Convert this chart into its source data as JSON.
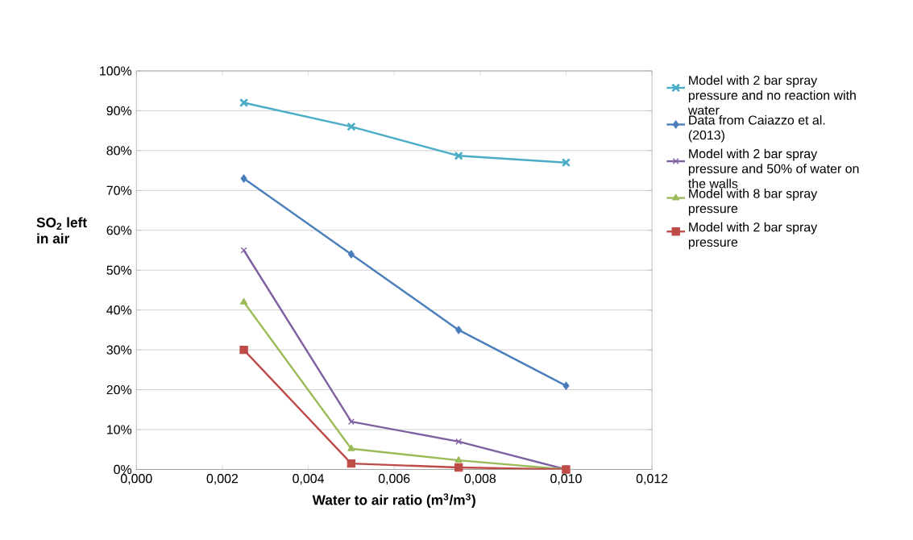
{
  "chart_data": {
    "type": "line",
    "xlabel": "Water to air ratio (m$^{3}$/m$^{3}$)",
    "ylabel": "SO$_{2}$ left in air",
    "x": [
      0.0025,
      0.005,
      0.0075,
      0.01
    ],
    "series": [
      {
        "name": "Model with 2 bar spray pressure and no reaction with water",
        "color": "#4bacc6",
        "marker": "cross",
        "values": [
          92,
          86,
          78.7,
          77
        ]
      },
      {
        "name": "Data from Caiazzo et al. (2013)",
        "color": "#4a7ebb",
        "marker": "diamond",
        "values": [
          73,
          54,
          35,
          21
        ]
      },
      {
        "name": "Model with 2 bar spray pressure and 50% of water on the walls",
        "color": "#7e5fa0",
        "marker": "cross",
        "values": [
          55,
          12,
          7,
          0
        ]
      },
      {
        "name": "Model with 8 bar spray pressure",
        "color": "#9bbb59",
        "marker": "triangle",
        "values": [
          42,
          5.2,
          2.3,
          0
        ]
      },
      {
        "name": "Model with 2 bar spray pressure",
        "color": "#be4b48",
        "marker": "square",
        "values": [
          30,
          1.5,
          0.5,
          0
        ]
      }
    ],
    "xlim": [
      0,
      0.012
    ],
    "xticks": [
      {
        "value": 0,
        "label": "0,000"
      },
      {
        "value": 0.002,
        "label": "0,002"
      },
      {
        "value": 0.004,
        "label": "0,004"
      },
      {
        "value": 0.006,
        "label": "0,006"
      },
      {
        "value": 0.008,
        "label": "0,008"
      },
      {
        "value": 0.01,
        "label": "0,010"
      },
      {
        "value": 0.012,
        "label": "0,012"
      }
    ],
    "ylim": [
      0,
      100
    ],
    "yticks": [
      {
        "value": 0,
        "label": "0%"
      },
      {
        "value": 10,
        "label": "10%"
      },
      {
        "value": 20,
        "label": "20%"
      },
      {
        "value": 30,
        "label": "30%"
      },
      {
        "value": 40,
        "label": "40%"
      },
      {
        "value": 50,
        "label": "50%"
      },
      {
        "value": 60,
        "label": "60%"
      },
      {
        "value": 70,
        "label": "70%"
      },
      {
        "value": 80,
        "label": "80%"
      },
      {
        "value": 90,
        "label": "90%"
      },
      {
        "value": 100,
        "label": "100%"
      }
    ],
    "grid": "y",
    "legend": "right",
    "line_style": "solid"
  }
}
